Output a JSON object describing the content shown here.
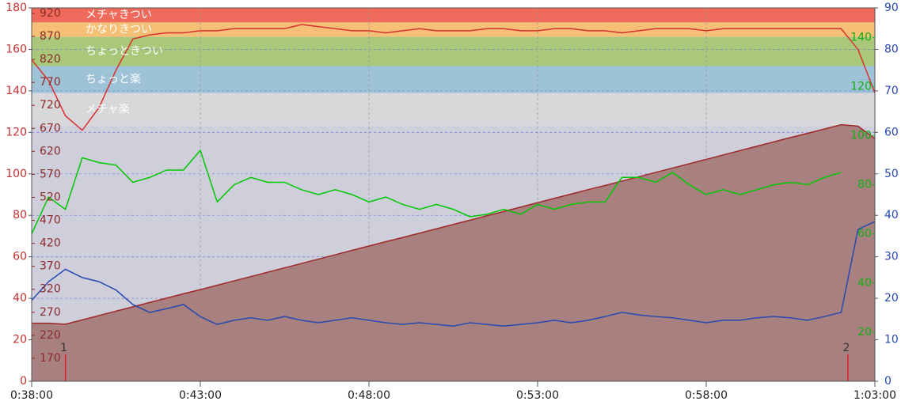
{
  "chart_data": {
    "type": "line",
    "x": [
      38,
      38.5,
      39,
      39.5,
      40,
      40.5,
      41,
      41.5,
      42,
      42.5,
      43,
      43.5,
      44,
      44.5,
      45,
      45.5,
      46,
      46.5,
      47,
      47.5,
      48,
      48.5,
      49,
      49.5,
      50,
      50.5,
      51,
      51.5,
      52,
      52.5,
      53,
      53.5,
      54,
      54.5,
      55,
      55.5,
      56,
      56.5,
      57,
      57.5,
      58,
      58.5,
      59,
      59.5,
      60,
      60.5,
      61,
      61.5,
      62,
      62.5,
      63
    ],
    "xlim": [
      38,
      63
    ],
    "xticks": [
      {
        "value": 38,
        "label": "0:38:00"
      },
      {
        "value": 43,
        "label": "0:43:00"
      },
      {
        "value": 48,
        "label": "0:48:00"
      },
      {
        "value": 53,
        "label": "0:53:00"
      },
      {
        "value": 58,
        "label": "0:58:00"
      },
      {
        "value": 63,
        "label": "1:03:00"
      }
    ],
    "ylim": [
      0,
      180
    ],
    "yticks": [
      0,
      20,
      40,
      60,
      80,
      100,
      120,
      140,
      160,
      180
    ],
    "y2lim": [
      0,
      90
    ],
    "y2ticks": [
      0,
      10,
      20,
      30,
      40,
      50,
      60,
      70,
      80,
      90
    ],
    "y3lim": [
      0,
      152
    ],
    "y3ticks": [
      20,
      40,
      60,
      80,
      100,
      120,
      140
    ],
    "y4lim": [
      120,
      932
    ],
    "y4ticks": [
      170,
      220,
      270,
      320,
      370,
      420,
      470,
      520,
      570,
      620,
      670,
      720,
      770,
      820,
      870,
      920
    ],
    "grid": true,
    "bands": [
      {
        "name": "メチャきつい",
        "color": "#ef6a5a",
        "from": 173,
        "to": 180
      },
      {
        "name": "かなりきつい",
        "color": "#f5c075",
        "from": 166,
        "to": 173
      },
      {
        "name": "ちょっときつい",
        "color": "#a9c87a",
        "from": 152,
        "to": 166
      },
      {
        "name": "ちょっと楽",
        "color": "#9fc3d6",
        "from": 139,
        "to": 152
      },
      {
        "name": "メチャ楽",
        "color": "#d8d8da",
        "from": 123,
        "to": 139
      }
    ],
    "markers": [
      {
        "label": "1",
        "x": 39
      },
      {
        "label": "2",
        "x": 62.2
      }
    ],
    "series": [
      {
        "color": "#a02828",
        "fill": "#a88080",
        "area": true,
        "values": [
          28,
          28,
          27.5,
          29.6,
          31.7,
          33.8,
          35.9,
          38,
          40.1,
          42.2,
          44.2,
          46.3,
          48.4,
          50.5,
          52.6,
          54.7,
          56.8,
          58.9,
          61,
          63.1,
          65.2,
          67.3,
          69.3,
          71.4,
          73.5,
          75.6,
          77.7,
          79.8,
          81.9,
          84,
          86.1,
          88.2,
          90.3,
          92.4,
          94.4,
          96.5,
          98.6,
          100.7,
          102.8,
          104.9,
          107,
          109.1,
          111.2,
          113.3,
          115.4,
          117.5,
          119.5,
          121.6,
          123.7,
          123,
          117
        ]
      },
      {
        "color": "#d83030",
        "values": [
          155,
          145,
          128,
          121,
          132,
          150,
          165,
          167,
          168,
          168,
          169,
          169,
          170,
          170,
          170,
          170,
          172,
          171,
          170,
          169,
          169,
          168,
          169,
          170,
          169,
          169,
          169,
          170,
          170,
          169,
          169,
          170,
          170,
          169,
          169,
          168,
          169,
          170,
          170,
          170,
          169,
          170,
          170,
          170,
          170,
          170,
          170,
          170,
          170,
          160,
          139
        ]
      },
      {
        "color": "#00c800",
        "axis": "y3",
        "values": [
          60,
          75,
          70,
          91,
          89,
          88,
          81,
          83,
          86,
          86,
          94,
          73,
          80,
          83,
          81,
          81,
          78,
          76,
          78,
          76,
          73,
          75,
          72,
          70,
          72,
          70,
          67,
          68,
          70,
          68,
          72,
          70,
          72,
          73,
          73,
          83,
          83,
          81,
          85,
          80,
          76,
          78,
          76,
          78,
          80,
          81,
          80,
          83,
          85,
          null,
          null
        ]
      },
      {
        "color": "#2848b0",
        "axis": "y2",
        "values": [
          19.5,
          24,
          27,
          25,
          24,
          22,
          18.5,
          16.6,
          17.5,
          18.5,
          15.6,
          13.7,
          14.7,
          15.3,
          14.7,
          15.6,
          14.7,
          14.1,
          14.7,
          15.3,
          14.7,
          14.1,
          13.7,
          14.1,
          13.7,
          13.3,
          14.1,
          13.7,
          13.3,
          13.7,
          14.1,
          14.7,
          14.1,
          14.7,
          15.6,
          16.6,
          16,
          15.6,
          15.3,
          14.7,
          14.1,
          14.7,
          14.7,
          15.3,
          15.6,
          15.3,
          14.7,
          15.6,
          16.6,
          36.6,
          38.5
        ]
      }
    ]
  }
}
